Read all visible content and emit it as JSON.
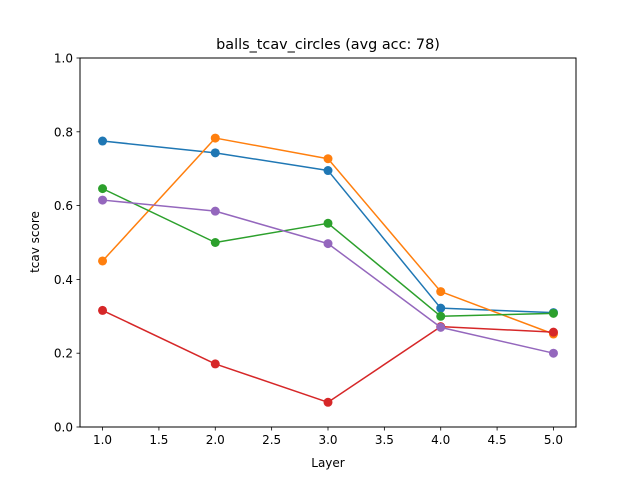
{
  "chart_data": {
    "type": "line",
    "title": "balls_tcav_circles (avg acc: 78)",
    "xlabel": "Layer",
    "ylabel": "tcav score",
    "xlim": [
      0.8,
      5.2
    ],
    "ylim": [
      0.0,
      1.0
    ],
    "xticks": [
      1.0,
      1.5,
      2.0,
      2.5,
      3.0,
      3.5,
      4.0,
      4.5,
      5.0
    ],
    "xtick_labels": [
      "1.0",
      "1.5",
      "2.0",
      "2.5",
      "3.0",
      "3.5",
      "4.0",
      "4.5",
      "5.0"
    ],
    "yticks": [
      0.0,
      0.2,
      0.4,
      0.6,
      0.8,
      1.0
    ],
    "ytick_labels": [
      "0.0",
      "0.2",
      "0.4",
      "0.6",
      "0.8",
      "1.0"
    ],
    "grid": false,
    "x": [
      1,
      2,
      3,
      4,
      5
    ],
    "series": [
      {
        "color": "#1f77b4",
        "values": [
          0.775,
          0.743,
          0.695,
          0.322,
          0.31
        ]
      },
      {
        "color": "#ff7f0e",
        "values": [
          0.45,
          0.783,
          0.727,
          0.367,
          0.252
        ]
      },
      {
        "color": "#2ca02c",
        "values": [
          0.646,
          0.5,
          0.552,
          0.3,
          0.308
        ]
      },
      {
        "color": "#d62728",
        "values": [
          0.316,
          0.171,
          0.067,
          0.272,
          0.257
        ]
      },
      {
        "color": "#9467bd",
        "values": [
          0.615,
          0.585,
          0.497,
          0.27,
          0.2
        ]
      }
    ]
  }
}
